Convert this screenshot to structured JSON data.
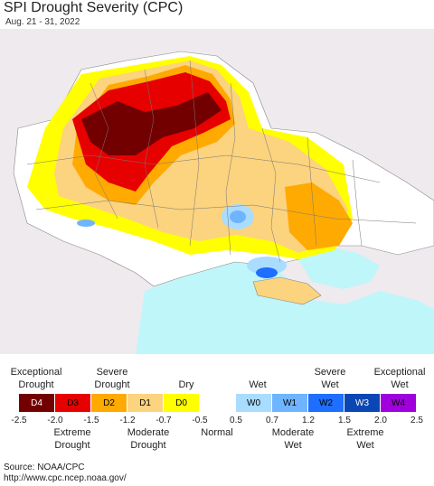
{
  "title": "SPI Drought Severity (CPC)",
  "subtitle": "Aug. 21 - 31, 2022",
  "legend": {
    "top_labels": [
      "Exceptional\nDrought",
      "Severe\nDrought",
      "Dry",
      "Wet",
      "Severe\nWet",
      "Exceptional\nWet"
    ],
    "bottom_labels": [
      "Extreme\nDrought",
      "Moderate\nDrought",
      "Normal",
      "Moderate\nWet",
      "Extreme\nWet"
    ],
    "categories": [
      {
        "code": "D4",
        "color": "#730000"
      },
      {
        "code": "D3",
        "color": "#e60000"
      },
      {
        "code": "D2",
        "color": "#ffaa00"
      },
      {
        "code": "D1",
        "color": "#fcd37f"
      },
      {
        "code": "D0",
        "color": "#ffff00"
      },
      {
        "code": "",
        "color": "#ffffff"
      },
      {
        "code": "W0",
        "color": "#aadcff"
      },
      {
        "code": "W1",
        "color": "#6fb4ff"
      },
      {
        "code": "W2",
        "color": "#1e6eff"
      },
      {
        "code": "W3",
        "color": "#0a46b4"
      },
      {
        "code": "W4",
        "color": "#a000dc"
      }
    ],
    "ticks": [
      "-2.5",
      "-2.0",
      "-1.5",
      "-1.2",
      "-0.7",
      "-0.5",
      "0.5",
      "0.7",
      "1.2",
      "1.5",
      "2.0",
      "2.5"
    ]
  },
  "source": {
    "line1": "Source: NOAA/CPC",
    "line2": "http://www.cpc.ncep.noaa.gov/"
  }
}
